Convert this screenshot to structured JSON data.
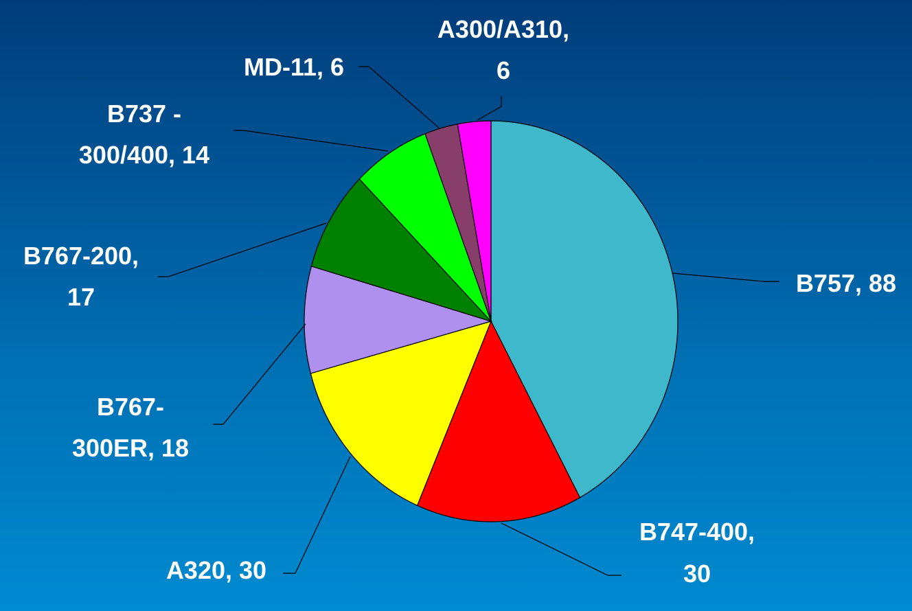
{
  "chart_data": {
    "type": "pie",
    "values": [
      88,
      30,
      30,
      18,
      17,
      14,
      6,
      6
    ],
    "value_labels": [
      "B757, 88",
      "B747-400, 30",
      "A320, 30",
      "B767-300ER, 18",
      "B767-200, 17",
      "B737 -300/400, 14",
      "MD-11, 6",
      "A300/A310, 6"
    ],
    "colors": [
      "#40b8cc",
      "#ff0000",
      "#ffff00",
      "#b090ee",
      "#008000",
      "#00ff00",
      "#883e6a",
      "#ff00ff"
    ]
  }
}
